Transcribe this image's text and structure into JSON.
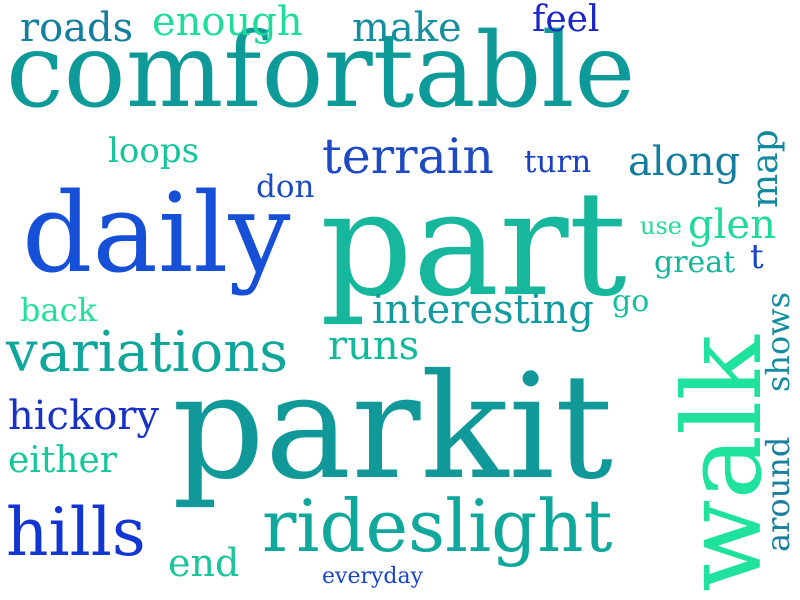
{
  "words": {
    "comfortable": {
      "text": "comfortable",
      "color": "#0f9a9a"
    },
    "part": {
      "text": "part",
      "color": "#16b79d"
    },
    "parkit": {
      "text": "parkit",
      "color": "#11999a"
    },
    "daily": {
      "text": "daily",
      "color": "#1550d6"
    },
    "walk": {
      "text": "walk",
      "color": "#1fe29c"
    },
    "rideslight": {
      "text": "rideslight",
      "color": "#10a89d"
    },
    "variations": {
      "text": "variations",
      "color": "#11a69c"
    },
    "hills": {
      "text": "hills",
      "color": "#1236d2"
    },
    "terrain": {
      "text": "terrain",
      "color": "#1d49c3"
    },
    "roads": {
      "text": "roads",
      "color": "#147e9e"
    },
    "enough": {
      "text": "enough",
      "color": "#1fdc9c"
    },
    "make": {
      "text": "make",
      "color": "#158fa0"
    },
    "feel": {
      "text": "feel",
      "color": "#1c26c8"
    },
    "hickory": {
      "text": "hickory",
      "color": "#1a32c4"
    },
    "either": {
      "text": "either",
      "color": "#17c69b"
    },
    "interesting": {
      "text": "interesting",
      "color": "#119a9f"
    },
    "runs": {
      "text": "runs",
      "color": "#12ba9c"
    },
    "along": {
      "text": "along",
      "color": "#147c9d"
    },
    "loops": {
      "text": "loops",
      "color": "#15c59c"
    },
    "don": {
      "text": "don",
      "color": "#1a4cbf"
    },
    "turn": {
      "text": "turn",
      "color": "#1c40c2"
    },
    "back": {
      "text": "back",
      "color": "#22e09a"
    },
    "end": {
      "text": "end",
      "color": "#1bc59c"
    },
    "everyday": {
      "text": "everyday",
      "color": "#1a45c8"
    },
    "glen": {
      "text": "glen",
      "color": "#20d99b"
    },
    "use": {
      "text": "use",
      "color": "#26d99a"
    },
    "great": {
      "text": "great",
      "color": "#15b59c"
    },
    "go": {
      "text": "go",
      "color": "#16bf9c"
    },
    "t": {
      "text": "t",
      "color": "#1845c4"
    },
    "map": {
      "text": "map",
      "color": "#0f8a9e"
    },
    "shows": {
      "text": "shows",
      "color": "#148e9f"
    },
    "around": {
      "text": "around",
      "color": "#1a7fa0"
    }
  }
}
